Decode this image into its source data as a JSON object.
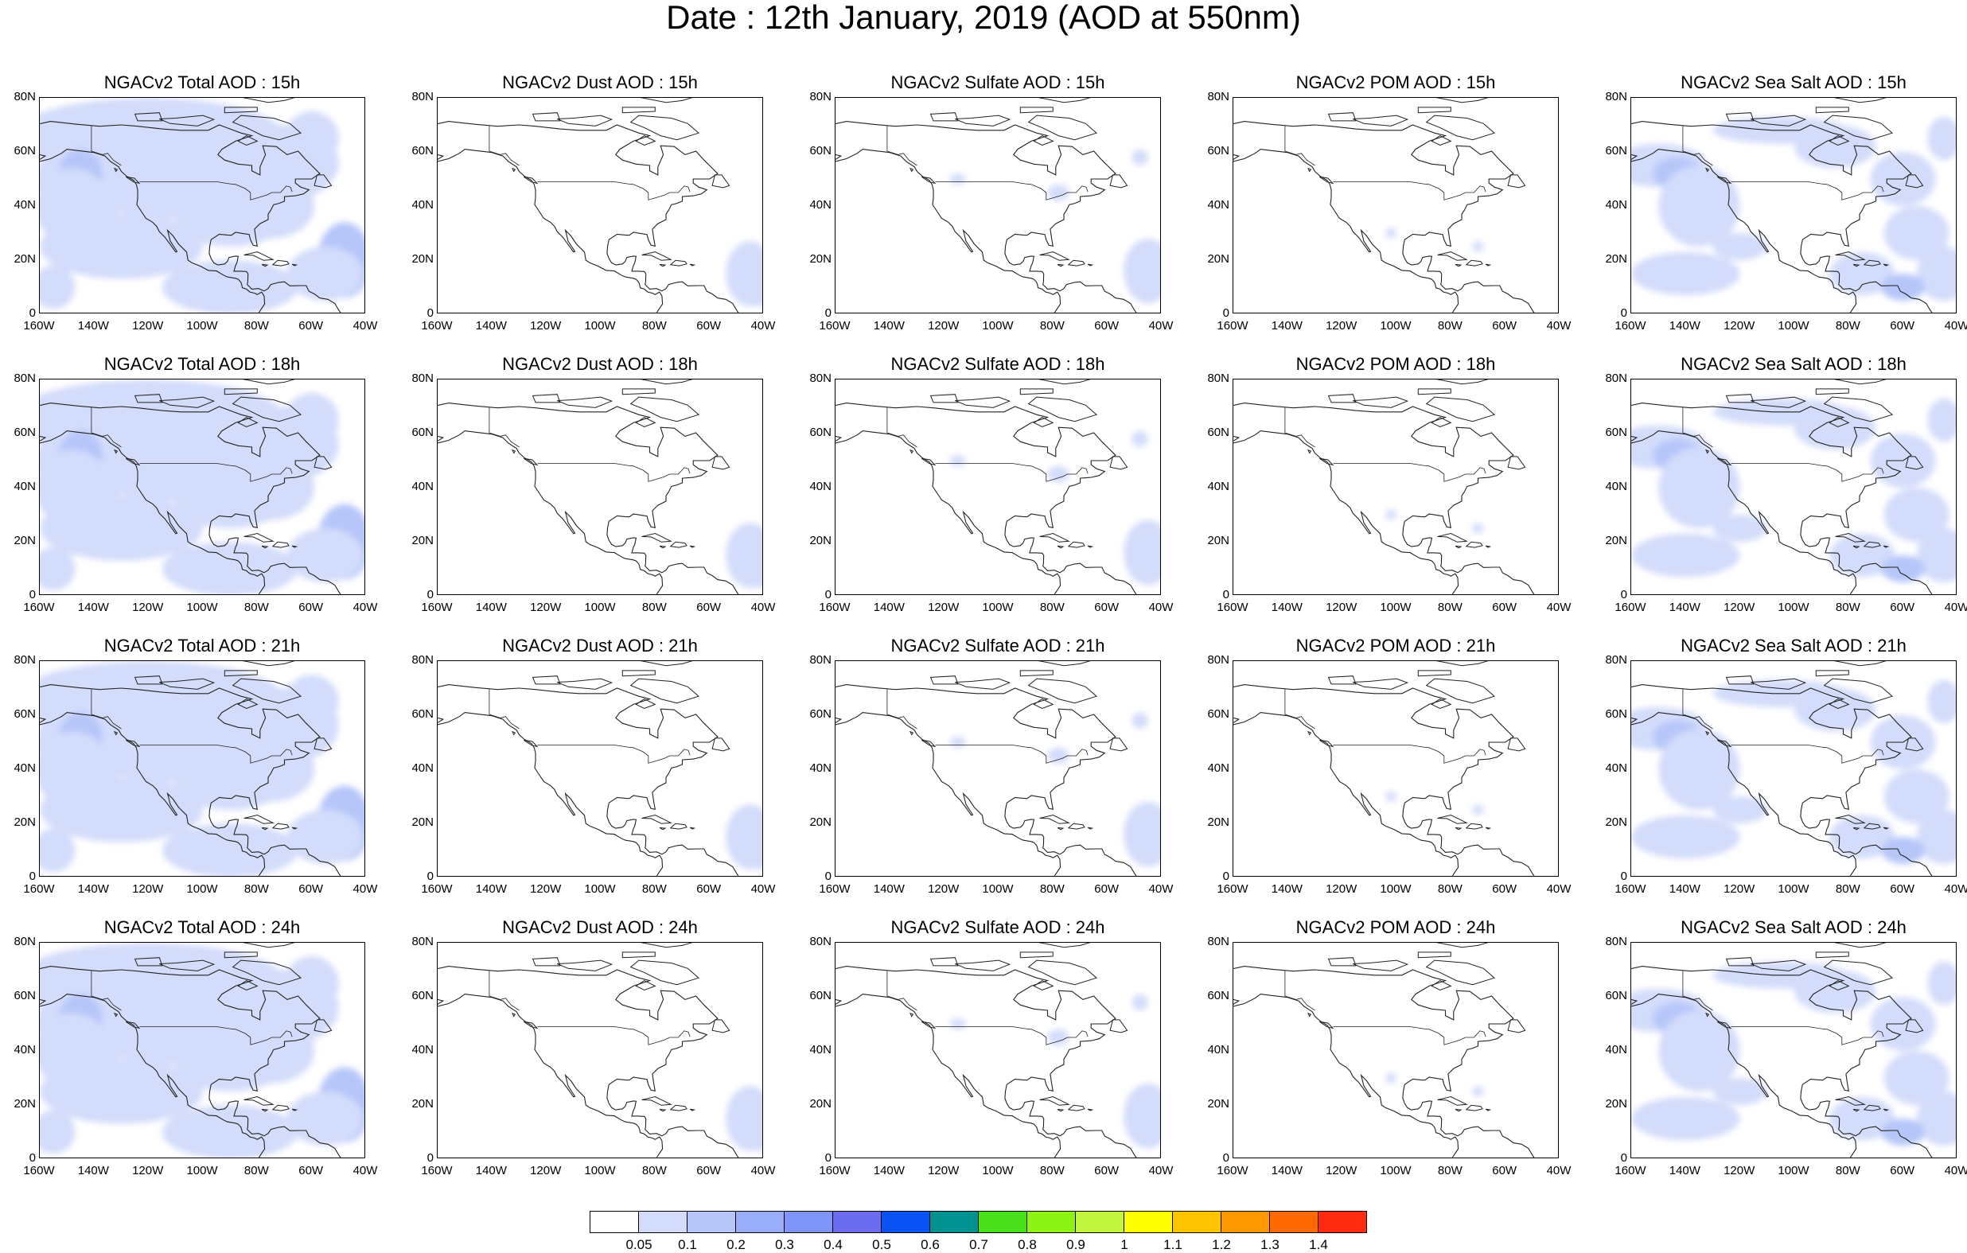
{
  "title": "Date : 12th January, 2019 (AOD at 550nm)",
  "panels": [
    {
      "title": "NGACv2 Total AOD : 15h",
      "species": "total"
    },
    {
      "title": "NGACv2 Dust AOD : 15h",
      "species": "dust"
    },
    {
      "title": "NGACv2 Sulfate AOD : 15h",
      "species": "sulfate"
    },
    {
      "title": "NGACv2 POM AOD : 15h",
      "species": "pom"
    },
    {
      "title": "NGACv2 Sea Salt AOD : 15h",
      "species": "seasalt"
    },
    {
      "title": "NGACv2 Total AOD : 18h",
      "species": "total"
    },
    {
      "title": "NGACv2 Dust AOD : 18h",
      "species": "dust"
    },
    {
      "title": "NGACv2 Sulfate AOD : 18h",
      "species": "sulfate"
    },
    {
      "title": "NGACv2 POM AOD : 18h",
      "species": "pom"
    },
    {
      "title": "NGACv2 Sea Salt AOD : 18h",
      "species": "seasalt"
    },
    {
      "title": "NGACv2 Total AOD : 21h",
      "species": "total"
    },
    {
      "title": "NGACv2 Dust AOD : 21h",
      "species": "dust"
    },
    {
      "title": "NGACv2 Sulfate AOD : 21h",
      "species": "sulfate"
    },
    {
      "title": "NGACv2 POM AOD : 21h",
      "species": "pom"
    },
    {
      "title": "NGACv2 Sea Salt AOD : 21h",
      "species": "seasalt"
    },
    {
      "title": "NGACv2 Total AOD : 24h",
      "species": "total"
    },
    {
      "title": "NGACv2 Dust AOD : 24h",
      "species": "dust"
    },
    {
      "title": "NGACv2 Sulfate AOD : 24h",
      "species": "sulfate"
    },
    {
      "title": "NGACv2 POM AOD : 24h",
      "species": "pom"
    },
    {
      "title": "NGACv2 Sea Salt  AOD : 24h",
      "species": "seasalt"
    }
  ],
  "lat_ticks": [
    "80N",
    "60N",
    "40N",
    "20N",
    "0"
  ],
  "lon_ticks": [
    "160W",
    "140W",
    "120W",
    "100W",
    "80W",
    "60W",
    "40W"
  ],
  "extent": {
    "lon_min": -160,
    "lon_max": -40,
    "lat_min": 0,
    "lat_max": 80
  },
  "colorbar": {
    "colors": [
      "#ffffff",
      "#d3dcfb",
      "#b6c6f9",
      "#98aefa",
      "#7f95f8",
      "#6c6cf0",
      "#0a53f5",
      "#009191",
      "#47e01a",
      "#8cf315",
      "#c2f53e",
      "#ffff00",
      "#ffc400",
      "#ff9800",
      "#ff6a00",
      "#ff2a10"
    ],
    "labels": [
      "0.05",
      "0.1",
      "0.2",
      "0.3",
      "0.4",
      "0.5",
      "0.6",
      "0.7",
      "0.8",
      "0.9",
      "1",
      "1.1",
      "1.2",
      "1.3",
      "1.4"
    ]
  }
}
